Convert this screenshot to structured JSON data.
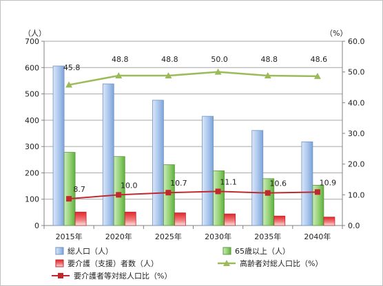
{
  "chart_data": {
    "type": "bar",
    "categories": [
      "2015年",
      "2020年",
      "2025年",
      "2030年",
      "2035年",
      "2040年"
    ],
    "y_left": {
      "unit_label": "（人）",
      "ylim": [
        0,
        700
      ],
      "ticks": [
        "0",
        "100",
        "200",
        "300",
        "400",
        "500",
        "600",
        "700"
      ]
    },
    "y_right": {
      "unit_label": "（%）",
      "ylim": [
        0,
        60
      ],
      "ticks": [
        "0.0",
        "10.0",
        "20.0",
        "30.0",
        "40.0",
        "50.0",
        "60.0"
      ]
    },
    "series": [
      {
        "name": "総人口（人）",
        "kind": "bar",
        "axis": "left",
        "color": "#9dbce8",
        "values": [
          606,
          538,
          476,
          415,
          361,
          318
        ]
      },
      {
        "name": "65歳以上（人）",
        "kind": "bar",
        "axis": "left",
        "color": "#8fd070",
        "values": [
          278,
          262,
          231,
          208,
          178,
          153
        ]
      },
      {
        "name": "要介護（支援）者数（人）",
        "kind": "bar",
        "axis": "left",
        "color": "#e8393a",
        "values": [
          51,
          51,
          48,
          44,
          36,
          32
        ]
      },
      {
        "name": "高齢者対総人口比（%）",
        "kind": "line",
        "axis": "right",
        "color": "#9bbb59",
        "marker": "triangle",
        "values": [
          45.8,
          48.8,
          48.8,
          50.0,
          48.8,
          48.6
        ],
        "labels": [
          "45.8",
          "48.8",
          "48.8",
          "50.0",
          "48.8",
          "48.6"
        ]
      },
      {
        "name": "要介護者等対総人口比（%）",
        "kind": "line",
        "axis": "right",
        "color": "#c0282d",
        "marker": "square",
        "values": [
          8.7,
          10.0,
          10.7,
          11.1,
          10.6,
          10.9
        ],
        "labels": [
          "8.7",
          "10.0",
          "10.7",
          "11.1",
          "10.6",
          "10.9"
        ]
      }
    ],
    "grid": true,
    "legend_position": "bottom"
  }
}
